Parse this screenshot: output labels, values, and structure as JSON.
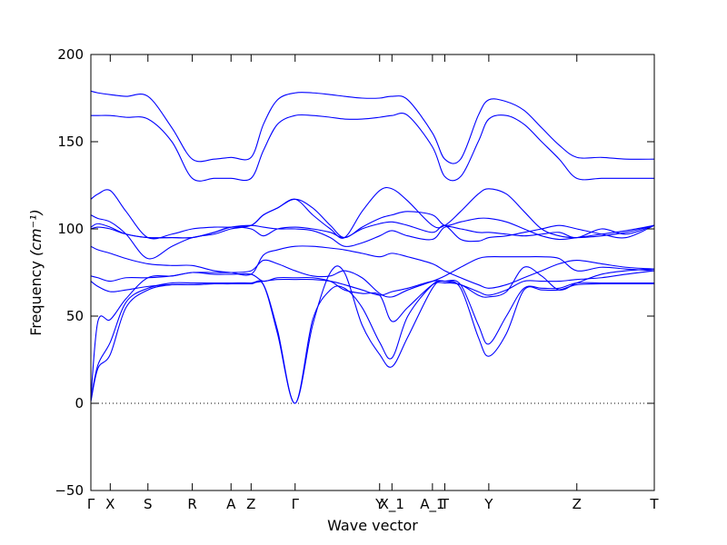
{
  "colors": {
    "band": "#0000ff",
    "axis": "#000000",
    "zero_line": "#000000",
    "background": "#ffffff"
  },
  "chart_data": {
    "type": "line",
    "title": "",
    "xlabel": "Wave vector",
    "ylabel": "Frequency ",
    "ylabel_unit": "(cm⁻¹)",
    "ylim": [
      -50,
      200
    ],
    "yticks": [
      -50,
      0,
      50,
      100,
      150,
      200
    ],
    "xlim": [
      0,
      16
    ],
    "grid": false,
    "legend": "none",
    "zero_line": {
      "y": 0,
      "style": "dotted"
    },
    "k_ticks": [
      {
        "label": "Γ",
        "x": 0
      },
      {
        "label": "X",
        "x": 0.55
      },
      {
        "label": "S",
        "x": 1.62
      },
      {
        "label": "R",
        "x": 2.88
      },
      {
        "label": "A",
        "x": 3.98
      },
      {
        "label": "Z",
        "x": 4.55
      },
      {
        "label": "Γ",
        "x": 5.8
      },
      {
        "label": "Y",
        "x": 8.2
      },
      {
        "label": "X_1",
        "x": 8.55
      },
      {
        "label": "A_1",
        "x": 9.7
      },
      {
        "label": "T",
        "x": 10.05
      },
      {
        "label": "Y",
        "x": 11.3
      },
      {
        "label": "Z",
        "x": 13.8
      },
      {
        "label": "T",
        "x": 16
      }
    ],
    "series": [
      {
        "x": [
          0,
          0.2,
          0.55,
          1.0,
          1.62,
          2.3,
          2.88,
          3.5,
          3.98,
          4.55,
          4.9,
          5.3,
          5.8,
          6.3,
          6.8,
          7.2,
          7.7,
          8.2,
          8.55,
          9.0,
          9.7,
          10.05,
          10.5,
          11.0,
          11.3,
          11.8,
          12.3,
          12.8,
          13.3,
          13.8,
          14.5,
          15.2,
          16
        ],
        "values": [
          1,
          20,
          28,
          55,
          65,
          68,
          68,
          68.5,
          68.5,
          68.5,
          68,
          40,
          0,
          45,
          75,
          75,
          45,
          28,
          21,
          38,
          66,
          70,
          66,
          38,
          27,
          40,
          65,
          65,
          65,
          68,
          68.5,
          68.5,
          68.5
        ]
      },
      {
        "x": [
          0,
          0.2,
          0.55,
          1.0,
          1.62,
          2.3,
          2.88,
          3.5,
          3.98,
          4.55,
          4.9,
          5.3,
          5.8,
          6.3,
          6.8,
          7.2,
          7.7,
          8.2,
          8.55,
          9.0,
          9.7,
          10.05,
          10.5,
          11.0,
          11.3,
          11.8,
          12.3,
          12.8,
          13.3,
          13.8,
          14.5,
          15.2,
          16
        ],
        "values": [
          2,
          22,
          35,
          58,
          66,
          69,
          69,
          69,
          69,
          69,
          68,
          42,
          0,
          48,
          65,
          66,
          55,
          35,
          26,
          50,
          68,
          70,
          68,
          45,
          34,
          50,
          66,
          66,
          66,
          69,
          69,
          69,
          69
        ]
      },
      {
        "x": [
          0,
          0.2,
          0.55,
          1.0,
          1.62,
          2.3,
          2.88,
          3.5,
          3.98,
          4.55,
          4.9,
          5.3,
          5.8,
          6.3,
          6.8,
          7.2,
          7.7,
          8.2,
          8.55,
          9.0,
          9.7,
          10.05,
          10.5,
          11.0,
          11.3,
          11.8,
          12.3,
          12.8,
          13.3,
          13.8,
          14.5,
          15.2,
          16
        ],
        "values": [
          3,
          47,
          48,
          60,
          72,
          73,
          75,
          74,
          74,
          74,
          70,
          72,
          72,
          72,
          70,
          65,
          63,
          62,
          47,
          55,
          68,
          69,
          68,
          62,
          61,
          64,
          78,
          73,
          65,
          69,
          74,
          76,
          77
        ]
      },
      {
        "x": [
          0,
          0.2,
          0.55,
          1.0,
          1.62,
          2.3,
          2.88,
          3.5,
          3.98,
          4.55,
          4.9,
          5.3,
          5.8,
          6.3,
          6.8,
          7.2,
          7.7,
          8.2,
          8.55,
          9.0,
          9.7,
          10.05,
          10.5,
          11.0,
          11.3,
          11.8,
          12.3,
          12.8,
          13.3,
          13.8,
          14.5,
          15.2,
          16
        ],
        "values": [
          70,
          67,
          64,
          65,
          67,
          68,
          68,
          68.5,
          68.5,
          69,
          70,
          71,
          71,
          71,
          70,
          68,
          65,
          62,
          64,
          66,
          70,
          70,
          68,
          64,
          62,
          65,
          70,
          70,
          70,
          71,
          72,
          74,
          76
        ]
      },
      {
        "x": [
          0,
          0.2,
          0.55,
          1.0,
          1.62,
          2.3,
          2.88,
          3.5,
          3.98,
          4.55,
          4.9,
          5.3,
          5.8,
          6.3,
          6.8,
          7.2,
          7.7,
          8.2,
          8.55,
          9.0,
          9.7,
          10.05,
          10.5,
          11.0,
          11.3,
          11.8,
          12.3,
          12.8,
          13.3,
          13.8,
          14.5,
          15.2,
          16
        ],
        "values": [
          73,
          72,
          70,
          72,
          72,
          73,
          75,
          75,
          75,
          76,
          82,
          80,
          76,
          73,
          73,
          76,
          72,
          63,
          61,
          65,
          70,
          73,
          78,
          83,
          84,
          84,
          84,
          84,
          83,
          76,
          78,
          77,
          76
        ]
      },
      {
        "x": [
          0,
          0.2,
          0.55,
          1.0,
          1.62,
          2.3,
          2.88,
          3.5,
          3.98,
          4.55,
          4.9,
          5.3,
          5.8,
          6.3,
          6.8,
          7.2,
          7.7,
          8.2,
          8.55,
          9.0,
          9.7,
          10.05,
          10.5,
          11.0,
          11.3,
          11.8,
          12.3,
          12.8,
          13.3,
          13.8,
          14.5,
          15.2,
          16
        ],
        "values": [
          90,
          88,
          86,
          83,
          80,
          79,
          79,
          76,
          75,
          74,
          85,
          88,
          90,
          90,
          89,
          88,
          86,
          84,
          86,
          84,
          80,
          76,
          72,
          68,
          66,
          68,
          72,
          76,
          80,
          82,
          80,
          78,
          77
        ]
      },
      {
        "x": [
          0,
          0.2,
          0.55,
          1.0,
          1.62,
          2.3,
          2.88,
          3.5,
          3.98,
          4.55,
          4.9,
          5.3,
          5.8,
          6.3,
          6.8,
          7.2,
          7.7,
          8.2,
          8.55,
          9.0,
          9.7,
          10.05,
          10.5,
          11.0,
          11.3,
          11.8,
          12.3,
          12.8,
          13.3,
          13.8,
          14.5,
          15.2,
          16
        ],
        "values": [
          100,
          101,
          100,
          97,
          95,
          95,
          95,
          98,
          101,
          102,
          101,
          100,
          100,
          99,
          95,
          90,
          92,
          96,
          99,
          96,
          94,
          101,
          100,
          98,
          98,
          97,
          96,
          97,
          98,
          95,
          100,
          97,
          102
        ]
      },
      {
        "x": [
          0,
          0.2,
          0.55,
          1.0,
          1.62,
          2.3,
          2.88,
          3.5,
          3.98,
          4.55,
          4.9,
          5.3,
          5.8,
          6.3,
          6.8,
          7.2,
          7.7,
          8.2,
          8.55,
          9.0,
          9.7,
          10.05,
          10.5,
          11.0,
          11.3,
          11.8,
          12.3,
          12.8,
          13.3,
          13.8,
          14.5,
          15.2,
          16
        ],
        "values": [
          101,
          103,
          101,
          97,
          95,
          95,
          95,
          98,
          101,
          100,
          96,
          100,
          101,
          100,
          98,
          95,
          100,
          103,
          104,
          102,
          98,
          102,
          94,
          93,
          95,
          96,
          98,
          100,
          102,
          100,
          97,
          95,
          102
        ]
      },
      {
        "x": [
          0,
          0.2,
          0.55,
          1.0,
          1.62,
          2.3,
          2.88,
          3.5,
          3.98,
          4.55,
          4.9,
          5.3,
          5.8,
          6.3,
          6.8,
          7.2,
          7.7,
          8.2,
          8.55,
          9.0,
          9.7,
          10.05,
          10.5,
          11.0,
          11.3,
          11.8,
          12.3,
          12.8,
          13.3,
          13.8,
          14.5,
          15.2,
          16
        ],
        "values": [
          108,
          106,
          104,
          97,
          83,
          90,
          95,
          97,
          100,
          102,
          108,
          112,
          117,
          112,
          102,
          95,
          101,
          106,
          108,
          110,
          108,
          102,
          104,
          106,
          106,
          104,
          100,
          96,
          94,
          95,
          97,
          99,
          102
        ]
      },
      {
        "x": [
          0,
          0.2,
          0.55,
          1.0,
          1.62,
          2.3,
          2.88,
          3.5,
          3.98,
          4.55,
          4.9,
          5.3,
          5.8,
          6.3,
          6.8,
          7.2,
          7.7,
          8.2,
          8.55,
          9.0,
          9.7,
          10.05,
          10.5,
          11.0,
          11.3,
          11.8,
          12.3,
          12.8,
          13.3,
          13.8,
          14.5,
          15.2,
          16
        ],
        "values": [
          117,
          120,
          122,
          110,
          95,
          97,
          100,
          101,
          101,
          102,
          108,
          112,
          117,
          108,
          100,
          95,
          110,
          122,
          123,
          116,
          102,
          102,
          110,
          120,
          123,
          120,
          110,
          100,
          96,
          95,
          96,
          98,
          102
        ]
      },
      {
        "x": [
          0,
          0.2,
          0.55,
          1.0,
          1.62,
          2.3,
          2.88,
          3.5,
          3.98,
          4.55,
          4.9,
          5.3,
          5.8,
          6.3,
          6.8,
          7.2,
          7.7,
          8.2,
          8.55,
          9.0,
          9.7,
          10.05,
          10.5,
          11.0,
          11.3,
          11.8,
          12.3,
          12.8,
          13.3,
          13.8,
          14.5,
          15.2,
          16
        ],
        "values": [
          165,
          165,
          165,
          164,
          163,
          150,
          129,
          129,
          129,
          129,
          145,
          160,
          165,
          165,
          164,
          163,
          163,
          164,
          165,
          165,
          147,
          130,
          130,
          150,
          163,
          165,
          160,
          150,
          140,
          129,
          129,
          129,
          129
        ]
      },
      {
        "x": [
          0,
          0.2,
          0.55,
          1.0,
          1.62,
          2.3,
          2.88,
          3.5,
          3.98,
          4.55,
          4.9,
          5.3,
          5.8,
          6.3,
          6.8,
          7.2,
          7.7,
          8.2,
          8.55,
          9.0,
          9.7,
          10.05,
          10.5,
          11.0,
          11.3,
          11.8,
          12.3,
          12.8,
          13.3,
          13.8,
          14.5,
          15.2,
          16
        ],
        "values": [
          179,
          178,
          177,
          176,
          176,
          158,
          140,
          140,
          141,
          141,
          160,
          174,
          178,
          178,
          177,
          176,
          175,
          175,
          176,
          174,
          155,
          140,
          140,
          165,
          174,
          173,
          168,
          158,
          148,
          141,
          141,
          140,
          140
        ]
      }
    ]
  }
}
